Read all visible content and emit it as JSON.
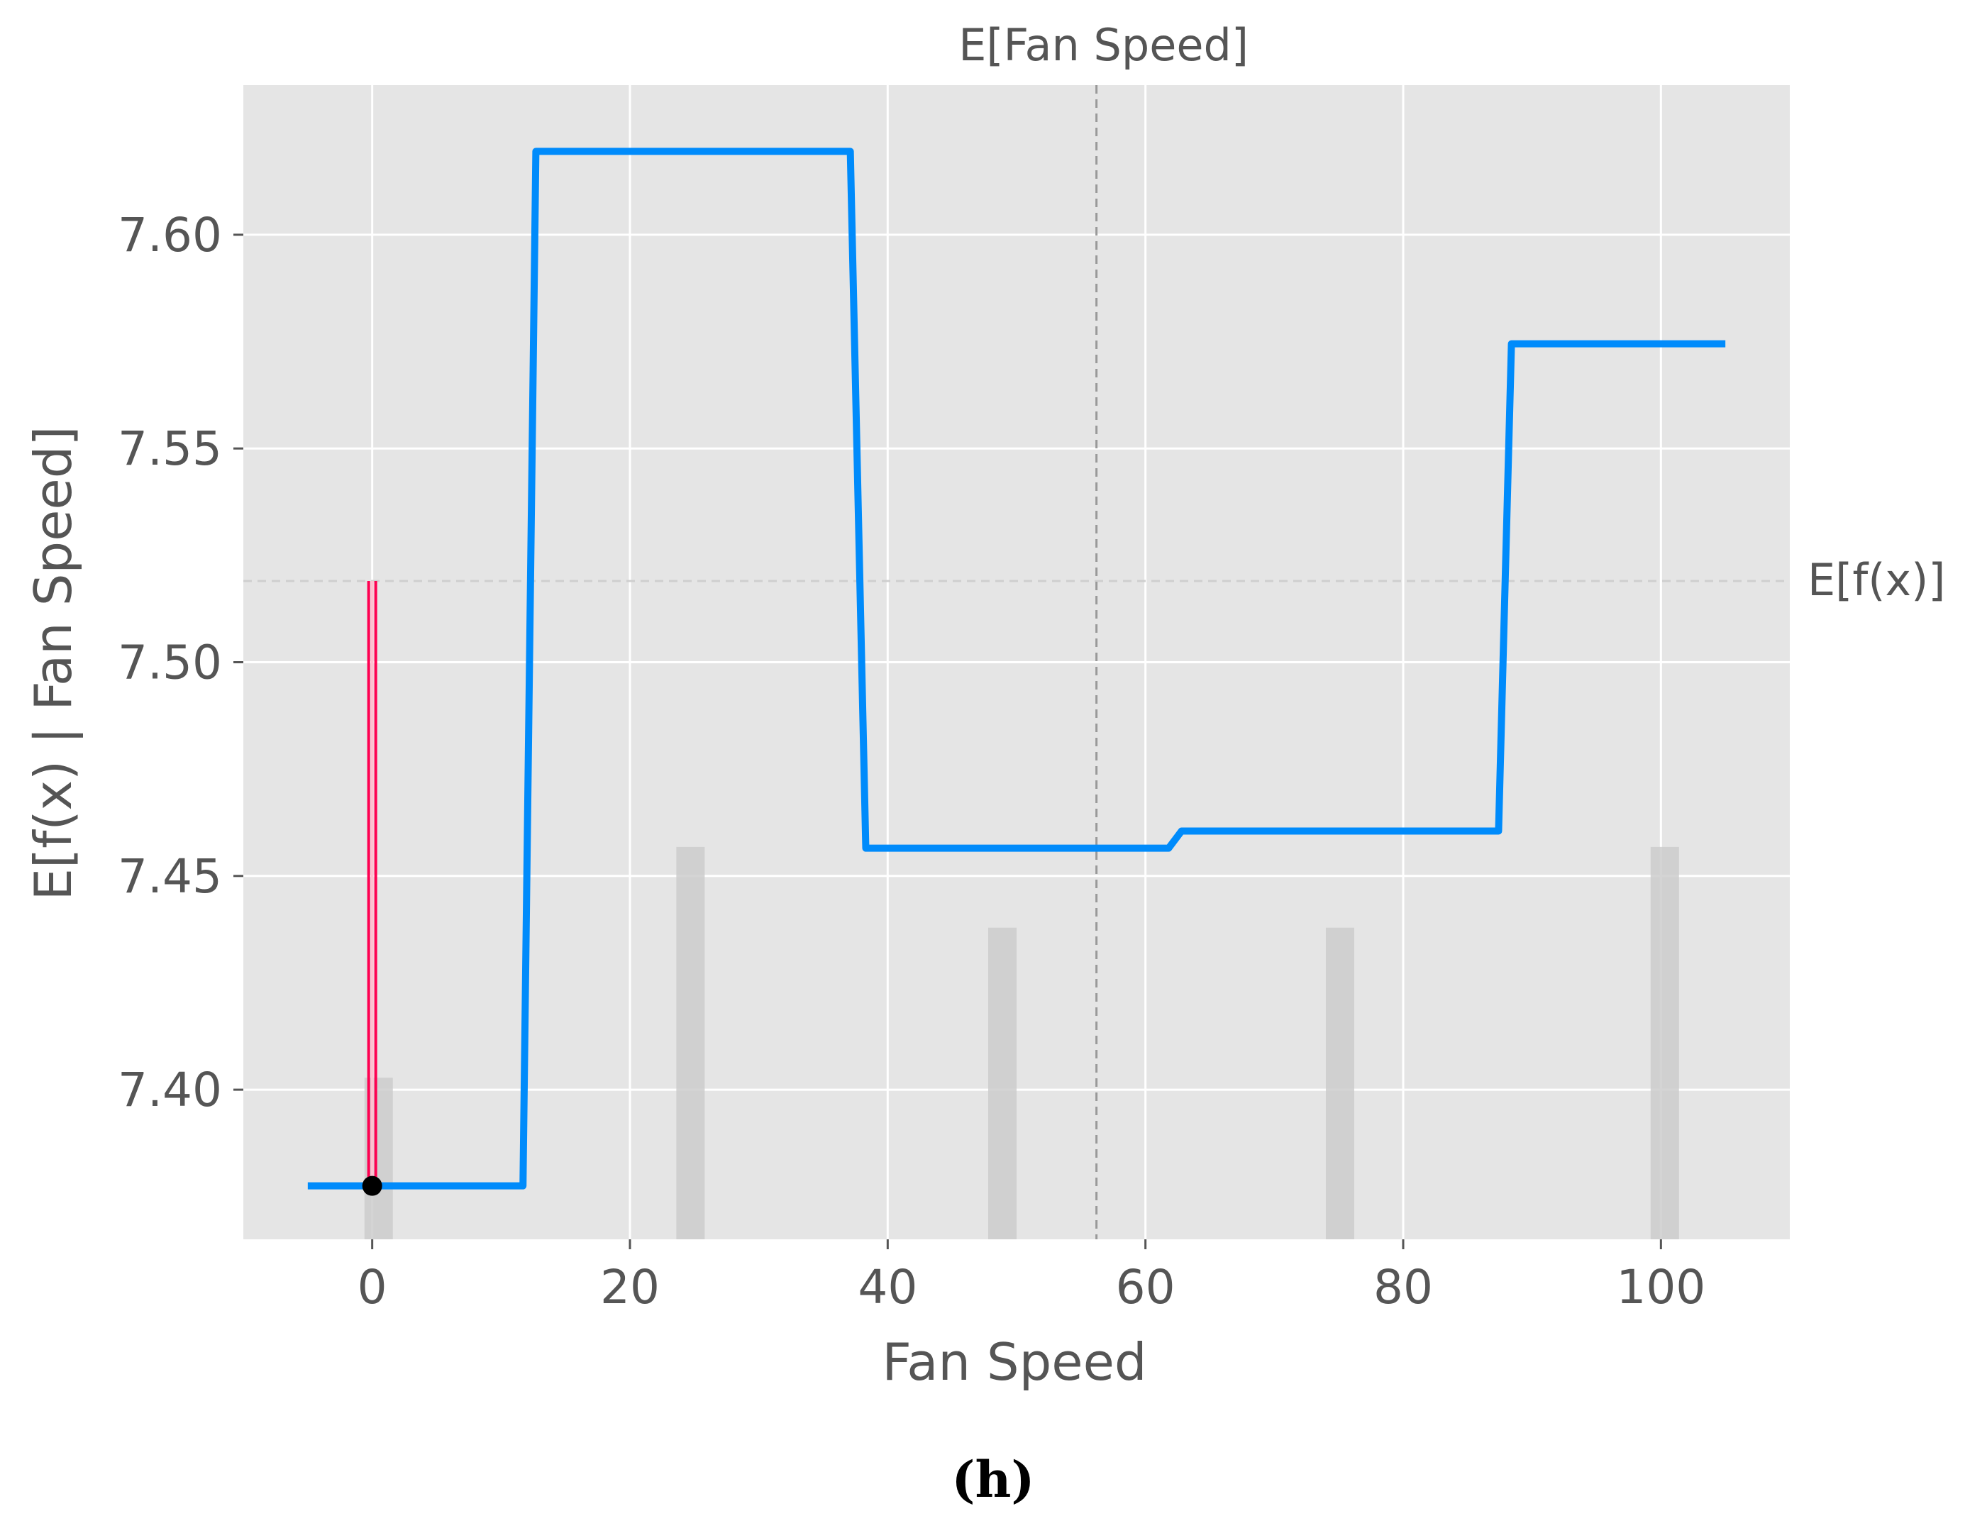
{
  "chart_data": {
    "type": "line",
    "xlabel": "Fan Speed",
    "ylabel": "E[f(x) | Fan Speed]",
    "xlim": [
      -10,
      110
    ],
    "ylim": [
      7.365,
      7.635
    ],
    "x_ticks": [
      0,
      20,
      40,
      60,
      80,
      100
    ],
    "x_tick_labels": [
      "0",
      "20",
      "40",
      "60",
      "80",
      "100"
    ],
    "y_ticks": [
      7.4,
      7.45,
      7.5,
      7.55,
      7.6
    ],
    "y_tick_labels": [
      "7.40",
      "7.45",
      "7.50",
      "7.55",
      "7.60"
    ],
    "grid": true,
    "series": [
      {
        "color": "#008bfb",
        "x": [
          -5,
          11.7,
          12.7,
          37.1,
          38.3,
          61.8,
          62.8,
          87.4,
          88.4,
          105
        ],
        "y": [
          7.3775,
          7.3775,
          7.6195,
          7.6195,
          7.4565,
          7.4565,
          7.4605,
          7.4605,
          7.5745,
          7.5745
        ]
      }
    ],
    "histogram": {
      "color": "#cccccc",
      "x": [
        0.5,
        24.7,
        48.9,
        75.1,
        100.3
      ],
      "height_fraction": [
        0.28,
        0.68,
        0.54,
        0.54,
        0.68
      ]
    },
    "expected_value_line": {
      "y": 7.519,
      "label": "E[f(x)]"
    },
    "expected_feature_line": {
      "x": 56.2,
      "label": "E[Fan Speed]"
    },
    "highlight_point": {
      "x": 0,
      "y": 7.3775,
      "stem_color": "#ff0051"
    }
  },
  "caption": "(h)"
}
